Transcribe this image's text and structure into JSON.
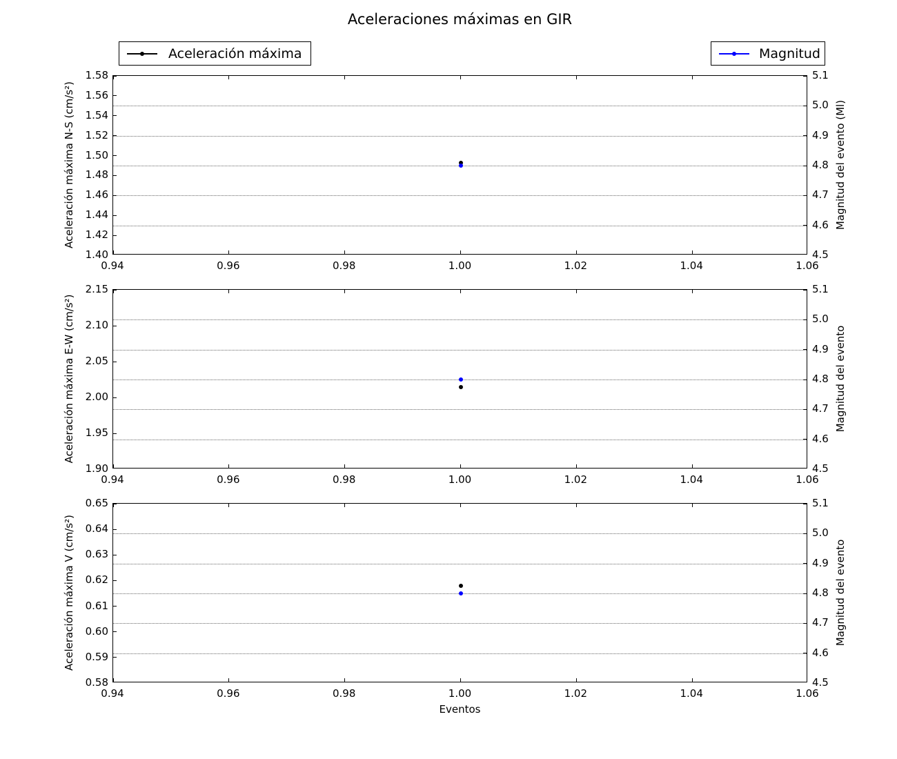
{
  "chart_data": {
    "type": "scatter",
    "title": "Aceleraciones máximas en GIR",
    "xlabel": "Eventos",
    "xlim": [
      0.94,
      1.06
    ],
    "xticks": [
      "0.94",
      "0.96",
      "0.98",
      "1.00",
      "1.02",
      "1.04",
      "1.06"
    ],
    "grid": "horizontal dotted lines at right-axis ticks",
    "legend": [
      {
        "name": "Aceleración máxima",
        "color": "#000000",
        "position": "upper left"
      },
      {
        "name": "Magnitud",
        "color": "#0000ff",
        "position": "upper right"
      }
    ],
    "subplots": [
      {
        "ylabel": "Aceleración máxima N-S (cm/s²)",
        "ylim": [
          1.4,
          1.58
        ],
        "yticks": [
          "1.40",
          "1.42",
          "1.44",
          "1.46",
          "1.48",
          "1.50",
          "1.52",
          "1.54",
          "1.56",
          "1.58"
        ],
        "y2label": "Magnitud del evento (Ml)",
        "y2lim": [
          4.5,
          5.1
        ],
        "y2ticks": [
          "4.5",
          "4.6",
          "4.7",
          "4.8",
          "4.9",
          "5.0",
          "5.1"
        ],
        "series": [
          {
            "name": "Aceleración máxima",
            "axis": "left",
            "color": "#000000",
            "x": [
              1.0
            ],
            "y": [
              1.493
            ]
          },
          {
            "name": "Magnitud",
            "axis": "right",
            "color": "#0000ff",
            "x": [
              1.0
            ],
            "y": [
              4.8
            ]
          }
        ]
      },
      {
        "ylabel": "Aceleración máxima E-W (cm/s²)",
        "ylim": [
          1.9,
          2.15
        ],
        "yticks": [
          "1.90",
          "1.95",
          "2.00",
          "2.05",
          "2.10",
          "2.15"
        ],
        "y2label": "Magnitud del evento",
        "y2lim": [
          4.5,
          5.1
        ],
        "y2ticks": [
          "4.5",
          "4.6",
          "4.7",
          "4.8",
          "4.9",
          "5.0",
          "5.1"
        ],
        "series": [
          {
            "name": "Aceleración máxima",
            "axis": "left",
            "color": "#000000",
            "x": [
              1.0
            ],
            "y": [
              2.014
            ]
          },
          {
            "name": "Magnitud",
            "axis": "right",
            "color": "#0000ff",
            "x": [
              1.0
            ],
            "y": [
              4.8
            ]
          }
        ]
      },
      {
        "ylabel": "Aceleración máxima V (cm/s²)",
        "ylim": [
          0.58,
          0.65
        ],
        "yticks": [
          "0.58",
          "0.59",
          "0.60",
          "0.61",
          "0.62",
          "0.63",
          "0.64",
          "0.65"
        ],
        "y2label": "Magnitud del evento",
        "y2lim": [
          4.5,
          5.1
        ],
        "y2ticks": [
          "4.5",
          "4.6",
          "4.7",
          "4.8",
          "4.9",
          "5.0",
          "5.1"
        ],
        "series": [
          {
            "name": "Aceleración máxima",
            "axis": "left",
            "color": "#000000",
            "x": [
              1.0
            ],
            "y": [
              0.618
            ]
          },
          {
            "name": "Magnitud",
            "axis": "right",
            "color": "#0000ff",
            "x": [
              1.0
            ],
            "y": [
              4.8
            ]
          }
        ]
      }
    ]
  }
}
